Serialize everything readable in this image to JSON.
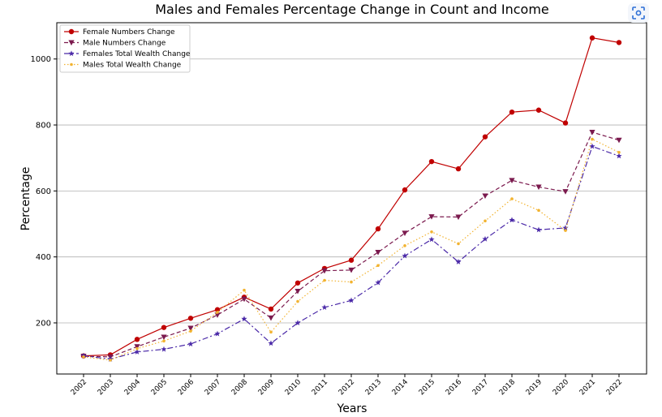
{
  "chart_data": {
    "type": "line",
    "title": "Males and Females Percentage Change in Count and Income",
    "xlabel": "Years",
    "ylabel": "Percentage",
    "categories": [
      "2002",
      "2003",
      "2004",
      "2005",
      "2006",
      "2007",
      "2008",
      "2009",
      "2010",
      "2011",
      "2012",
      "2013",
      "2014",
      "2015",
      "2016",
      "2017",
      "2018",
      "2019",
      "2020",
      "2021",
      "2022"
    ],
    "yticks": [
      200,
      400,
      600,
      800,
      1000
    ],
    "ylim": [
      45,
      1110
    ],
    "grid": "y",
    "legend_position": "top-left",
    "series": [
      {
        "name": "Female Numbers Change",
        "color": "#c00000",
        "linestyle": "solid",
        "marker": "circle",
        "values": [
          100,
          103,
          150,
          186,
          214,
          240,
          278,
          242,
          321,
          365,
          390,
          485,
          603,
          689,
          667,
          764,
          839,
          845,
          806,
          1064,
          1050
        ]
      },
      {
        "name": "Male Numbers Change",
        "color": "#7b1a4e",
        "linestyle": "dashed",
        "marker": "triangle-down",
        "values": [
          99,
          97,
          128,
          157,
          184,
          224,
          272,
          215,
          296,
          358,
          360,
          414,
          472,
          522,
          521,
          585,
          632,
          612,
          598,
          778,
          754
        ]
      },
      {
        "name": "Females Total Wealth Change",
        "color": "#4b2aa8",
        "linestyle": "dashdot",
        "marker": "star",
        "values": [
          100,
          90,
          112,
          120,
          136,
          167,
          212,
          138,
          200,
          247,
          268,
          322,
          403,
          453,
          385,
          454,
          512,
          482,
          488,
          735,
          706
        ]
      },
      {
        "name": "Males Total Wealth Change",
        "color": "#f2b330",
        "linestyle": "dotted",
        "marker": "point",
        "values": [
          97,
          87,
          122,
          145,
          175,
          232,
          299,
          172,
          265,
          329,
          324,
          374,
          434,
          476,
          440,
          509,
          576,
          541,
          480,
          757,
          717
        ]
      }
    ]
  },
  "toolbar": {
    "icon": "scan-icon"
  }
}
